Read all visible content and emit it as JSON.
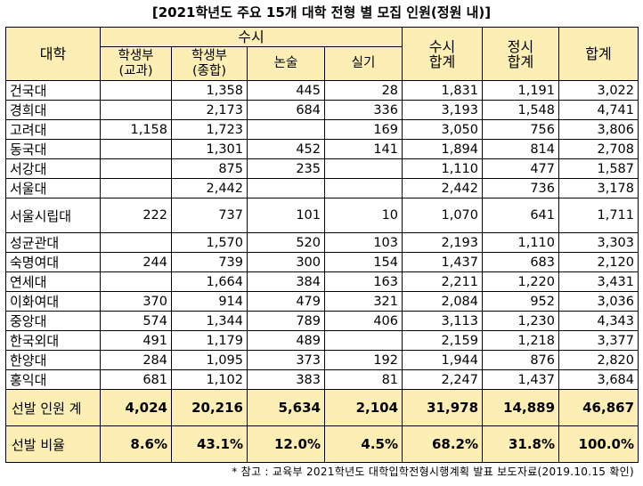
{
  "title": "[2021학년도 주요 15개 대학 전형 별 모집 인원(정원 내)]",
  "header": {
    "university": "대학",
    "susi": "수시",
    "subject_line1": "학생부",
    "subject_line2": "(교과)",
    "comprehensive_line1": "학생부",
    "comprehensive_line2": "(종합)",
    "essay": "논술",
    "practical": "실기",
    "susi_total_line1": "수시",
    "susi_total_line2": "합계",
    "jeongsi_total_line1": "정시",
    "jeongsi_total_line2": "합계",
    "grand_total": "합계"
  },
  "rows": [
    {
      "name": "건국대",
      "subject": "",
      "comprehensive": "1,358",
      "essay": "445",
      "practical": "28",
      "susi_total": "1,831",
      "jeongsi_total": "1,191",
      "total": "3,022"
    },
    {
      "name": "경희대",
      "subject": "",
      "comprehensive": "2,173",
      "essay": "684",
      "practical": "336",
      "susi_total": "3,193",
      "jeongsi_total": "1,548",
      "total": "4,741"
    },
    {
      "name": "고려대",
      "subject": "1,158",
      "comprehensive": "1,723",
      "essay": "",
      "practical": "169",
      "susi_total": "3,050",
      "jeongsi_total": "756",
      "total": "3,806"
    },
    {
      "name": "동국대",
      "subject": "",
      "comprehensive": "1,301",
      "essay": "452",
      "practical": "141",
      "susi_total": "1,894",
      "jeongsi_total": "814",
      "total": "2,708"
    },
    {
      "name": "서강대",
      "subject": "",
      "comprehensive": "875",
      "essay": "235",
      "practical": "",
      "susi_total": "1,110",
      "jeongsi_total": "477",
      "total": "1,587"
    },
    {
      "name": "서울대",
      "subject": "",
      "comprehensive": "2,442",
      "essay": "",
      "practical": "",
      "susi_total": "2,442",
      "jeongsi_total": "736",
      "total": "3,178"
    },
    {
      "name": "서울시립대",
      "subject": "222",
      "comprehensive": "737",
      "essay": "101",
      "practical": "10",
      "susi_total": "1,070",
      "jeongsi_total": "641",
      "total": "1,711"
    },
    {
      "name": "성균관대",
      "subject": "",
      "comprehensive": "1,570",
      "essay": "520",
      "practical": "103",
      "susi_total": "2,193",
      "jeongsi_total": "1,110",
      "total": "3,303"
    },
    {
      "name": "숙명여대",
      "subject": "244",
      "comprehensive": "739",
      "essay": "300",
      "practical": "154",
      "susi_total": "1,437",
      "jeongsi_total": "683",
      "total": "2,120"
    },
    {
      "name": "연세대",
      "subject": "",
      "comprehensive": "1,664",
      "essay": "384",
      "practical": "163",
      "susi_total": "2,211",
      "jeongsi_total": "1,220",
      "total": "3,431"
    },
    {
      "name": "이화여대",
      "subject": "370",
      "comprehensive": "914",
      "essay": "479",
      "practical": "321",
      "susi_total": "2,084",
      "jeongsi_total": "952",
      "total": "3,036"
    },
    {
      "name": "중앙대",
      "subject": "574",
      "comprehensive": "1,344",
      "essay": "789",
      "practical": "406",
      "susi_total": "3,113",
      "jeongsi_total": "1,230",
      "total": "4,343"
    },
    {
      "name": "한국외대",
      "subject": "491",
      "comprehensive": "1,179",
      "essay": "489",
      "practical": "",
      "susi_total": "2,159",
      "jeongsi_total": "1,218",
      "total": "3,377"
    },
    {
      "name": "한양대",
      "subject": "284",
      "comprehensive": "1,095",
      "essay": "373",
      "practical": "192",
      "susi_total": "1,944",
      "jeongsi_total": "876",
      "total": "2,820"
    },
    {
      "name": "홍익대",
      "subject": "681",
      "comprehensive": "1,102",
      "essay": "383",
      "practical": "81",
      "susi_total": "2,247",
      "jeongsi_total": "1,437",
      "total": "3,684"
    }
  ],
  "summary_total": {
    "label": "선발 인원 계",
    "subject": "4,024",
    "comprehensive": "20,216",
    "essay": "5,634",
    "practical": "2,104",
    "susi_total": "31,978",
    "jeongsi_total": "14,889",
    "total": "46,867"
  },
  "summary_ratio": {
    "label": "선발 비율",
    "subject": "8.6%",
    "comprehensive": "43.1%",
    "essay": "12.0%",
    "practical": "4.5%",
    "susi_total": "68.2%",
    "jeongsi_total": "31.8%",
    "total": "100.0%"
  },
  "footnote": "* 참고 : 교육부 2021학년도 대학입학전형시행계획 발표 보도자료(2019.10.15 확인)"
}
